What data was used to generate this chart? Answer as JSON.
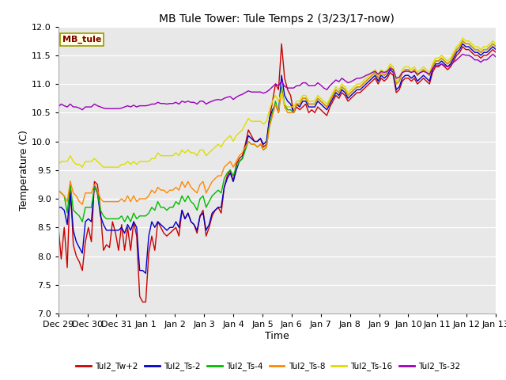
{
  "title": "MB Tule Tower: Tule Temps 2 (3/23/17-now)",
  "xlabel": "Time",
  "ylabel": "Temperature (C)",
  "ylim": [
    7.0,
    12.0
  ],
  "yticks": [
    7.0,
    7.5,
    8.0,
    8.5,
    9.0,
    9.5,
    10.0,
    10.5,
    11.0,
    11.5,
    12.0
  ],
  "background_color": "#e8e8e8",
  "station_label": "MB_tule",
  "tick_labels": [
    "Dec 29",
    "Dec 30",
    "Dec 31",
    "Jan 1",
    "Jan 2",
    "Jan 3",
    "Jan 4",
    "Jan 5",
    "Jan 6",
    "Jan 7",
    "Jan 8",
    "Jan 9",
    "Jan 10",
    "Jan 11",
    "Jan 12",
    "Jan 13"
  ],
  "tick_positions": [
    0,
    1,
    2,
    3,
    4,
    5,
    6,
    7,
    8,
    9,
    10,
    11,
    12,
    13,
    14,
    15
  ],
  "Tul2_Tw_plus2": [
    8.55,
    7.95,
    8.5,
    7.8,
    9.3,
    8.2,
    8.0,
    7.9,
    7.75,
    8.25,
    8.5,
    8.25,
    9.3,
    9.25,
    8.8,
    8.1,
    8.2,
    8.15,
    8.6,
    8.4,
    8.1,
    8.55,
    8.1,
    8.5,
    8.1,
    8.6,
    8.35,
    7.3,
    7.2,
    7.2,
    8.05,
    8.35,
    8.1,
    8.6,
    8.5,
    8.4,
    8.35,
    8.4,
    8.45,
    8.5,
    8.35,
    8.8,
    8.65,
    8.75,
    8.6,
    8.55,
    8.4,
    8.7,
    8.8,
    8.35,
    8.5,
    8.7,
    8.8,
    8.85,
    8.75,
    9.2,
    9.4,
    9.5,
    9.3,
    9.6,
    9.7,
    9.75,
    9.95,
    10.2,
    10.1,
    10.0,
    10.0,
    10.05,
    9.9,
    9.95,
    10.4,
    10.7,
    11.0,
    10.9,
    11.7,
    11.1,
    10.9,
    10.8,
    10.5,
    10.6,
    10.55,
    10.6,
    10.65,
    10.5,
    10.55,
    10.5,
    10.6,
    10.55,
    10.5,
    10.45,
    10.6,
    10.7,
    10.8,
    10.75,
    10.85,
    10.8,
    10.7,
    10.75,
    10.8,
    10.85,
    10.85,
    10.9,
    10.95,
    11.0,
    11.05,
    11.1,
    11.0,
    11.1,
    11.05,
    11.1,
    11.2,
    11.15,
    10.85,
    10.9,
    11.05,
    11.1,
    11.1,
    11.05,
    11.1,
    11.0,
    11.05,
    11.1,
    11.05,
    11.0,
    11.2,
    11.3,
    11.3,
    11.35,
    11.3,
    11.25,
    11.3,
    11.4,
    11.5,
    11.55,
    11.65,
    11.6,
    11.6,
    11.55,
    11.5,
    11.5,
    11.45,
    11.5,
    11.5,
    11.55,
    11.6,
    11.55
  ],
  "Tul2_Ts_minus2": [
    8.85,
    8.85,
    8.8,
    8.55,
    9.1,
    8.45,
    8.25,
    8.15,
    8.05,
    8.6,
    8.65,
    8.6,
    9.25,
    9.1,
    8.7,
    8.55,
    8.45,
    8.45,
    8.45,
    8.45,
    8.45,
    8.5,
    8.4,
    8.55,
    8.45,
    8.6,
    8.5,
    7.75,
    7.75,
    7.7,
    8.35,
    8.6,
    8.5,
    8.6,
    8.55,
    8.5,
    8.45,
    8.5,
    8.5,
    8.6,
    8.5,
    8.8,
    8.65,
    8.75,
    8.6,
    8.55,
    8.45,
    8.7,
    8.75,
    8.45,
    8.55,
    8.75,
    8.8,
    8.85,
    8.85,
    9.2,
    9.35,
    9.45,
    9.3,
    9.5,
    9.65,
    9.7,
    9.9,
    10.1,
    10.05,
    10.0,
    10.0,
    10.05,
    9.95,
    10.0,
    10.4,
    10.55,
    10.65,
    10.5,
    11.15,
    10.8,
    10.7,
    10.65,
    10.5,
    10.65,
    10.6,
    10.7,
    10.7,
    10.6,
    10.6,
    10.6,
    10.7,
    10.65,
    10.6,
    10.55,
    10.65,
    10.75,
    10.85,
    10.8,
    10.9,
    10.85,
    10.75,
    10.8,
    10.85,
    10.9,
    10.9,
    10.95,
    11.0,
    11.05,
    11.1,
    11.15,
    11.05,
    11.15,
    11.1,
    11.15,
    11.25,
    11.2,
    10.9,
    10.95,
    11.1,
    11.15,
    11.15,
    11.1,
    11.15,
    11.05,
    11.1,
    11.15,
    11.1,
    11.05,
    11.25,
    11.35,
    11.35,
    11.4,
    11.35,
    11.3,
    11.35,
    11.45,
    11.55,
    11.6,
    11.7,
    11.65,
    11.65,
    11.6,
    11.55,
    11.55,
    11.5,
    11.55,
    11.55,
    11.6,
    11.65,
    11.6
  ],
  "Tul2_Ts_minus4": [
    9.15,
    9.1,
    9.05,
    8.75,
    9.25,
    8.8,
    8.75,
    8.7,
    8.6,
    8.85,
    8.85,
    8.85,
    9.2,
    9.1,
    8.8,
    8.7,
    8.65,
    8.65,
    8.65,
    8.65,
    8.65,
    8.7,
    8.6,
    8.7,
    8.6,
    8.75,
    8.65,
    8.7,
    8.7,
    8.7,
    8.75,
    8.85,
    8.8,
    8.95,
    8.85,
    8.85,
    8.8,
    8.85,
    8.85,
    8.95,
    8.9,
    9.05,
    8.95,
    9.05,
    8.95,
    8.9,
    8.8,
    9.0,
    9.05,
    8.85,
    8.95,
    9.05,
    9.1,
    9.15,
    9.1,
    9.35,
    9.45,
    9.5,
    9.4,
    9.55,
    9.65,
    9.7,
    9.85,
    10.0,
    9.95,
    9.95,
    9.9,
    9.95,
    9.85,
    9.9,
    10.3,
    10.5,
    10.7,
    10.5,
    10.95,
    10.65,
    10.55,
    10.55,
    10.5,
    10.65,
    10.65,
    10.75,
    10.75,
    10.65,
    10.65,
    10.65,
    10.75,
    10.7,
    10.65,
    10.6,
    10.7,
    10.8,
    10.9,
    10.85,
    10.95,
    10.9,
    10.8,
    10.85,
    10.9,
    10.95,
    10.95,
    11.0,
    11.05,
    11.1,
    11.15,
    11.2,
    11.1,
    11.2,
    11.15,
    11.2,
    11.3,
    11.25,
    11.0,
    11.05,
    11.2,
    11.25,
    11.25,
    11.2,
    11.25,
    11.15,
    11.2,
    11.25,
    11.2,
    11.15,
    11.3,
    11.4,
    11.4,
    11.45,
    11.4,
    11.35,
    11.4,
    11.5,
    11.6,
    11.65,
    11.75,
    11.7,
    11.7,
    11.65,
    11.6,
    11.6,
    11.55,
    11.6,
    11.6,
    11.65,
    11.7,
    11.65
  ],
  "Tul2_Ts_minus8": [
    9.15,
    9.1,
    9.05,
    8.95,
    9.3,
    9.1,
    9.05,
    8.95,
    8.9,
    9.1,
    9.1,
    9.1,
    9.25,
    9.15,
    9.0,
    8.95,
    8.95,
    8.95,
    8.95,
    8.95,
    8.95,
    9.0,
    8.95,
    9.05,
    8.95,
    9.05,
    8.95,
    9.0,
    9.0,
    9.0,
    9.05,
    9.15,
    9.1,
    9.2,
    9.15,
    9.15,
    9.1,
    9.15,
    9.15,
    9.2,
    9.15,
    9.3,
    9.2,
    9.3,
    9.2,
    9.15,
    9.1,
    9.25,
    9.3,
    9.1,
    9.2,
    9.3,
    9.35,
    9.4,
    9.4,
    9.55,
    9.6,
    9.65,
    9.55,
    9.65,
    9.75,
    9.8,
    9.9,
    10.0,
    9.95,
    9.95,
    9.9,
    9.95,
    9.85,
    9.9,
    10.25,
    10.45,
    10.65,
    10.5,
    10.9,
    10.6,
    10.5,
    10.5,
    10.5,
    10.65,
    10.65,
    10.75,
    10.75,
    10.65,
    10.65,
    10.65,
    10.75,
    10.7,
    10.65,
    10.6,
    10.7,
    10.8,
    10.9,
    10.85,
    10.95,
    10.9,
    10.8,
    10.85,
    10.9,
    10.95,
    10.95,
    11.0,
    11.05,
    11.1,
    11.15,
    11.2,
    11.1,
    11.2,
    11.15,
    11.2,
    11.3,
    11.25,
    11.0,
    11.05,
    11.2,
    11.25,
    11.25,
    11.2,
    11.25,
    11.15,
    11.2,
    11.25,
    11.2,
    11.15,
    11.3,
    11.4,
    11.4,
    11.45,
    11.4,
    11.35,
    11.4,
    11.5,
    11.6,
    11.65,
    11.75,
    11.7,
    11.7,
    11.65,
    11.6,
    11.6,
    11.55,
    11.6,
    11.6,
    11.65,
    11.7,
    11.65
  ],
  "Tul2_Ts_minus16": [
    9.6,
    9.65,
    9.65,
    9.65,
    9.75,
    9.65,
    9.6,
    9.6,
    9.55,
    9.65,
    9.65,
    9.65,
    9.7,
    9.65,
    9.6,
    9.55,
    9.55,
    9.55,
    9.55,
    9.55,
    9.55,
    9.6,
    9.6,
    9.65,
    9.6,
    9.65,
    9.6,
    9.65,
    9.65,
    9.65,
    9.65,
    9.7,
    9.7,
    9.8,
    9.75,
    9.75,
    9.75,
    9.75,
    9.75,
    9.8,
    9.75,
    9.85,
    9.8,
    9.85,
    9.8,
    9.8,
    9.75,
    9.85,
    9.85,
    9.75,
    9.8,
    9.85,
    9.9,
    9.95,
    9.9,
    10.0,
    10.05,
    10.1,
    10.0,
    10.1,
    10.15,
    10.2,
    10.3,
    10.4,
    10.35,
    10.35,
    10.35,
    10.35,
    10.3,
    10.35,
    10.55,
    10.7,
    10.8,
    10.7,
    10.85,
    10.65,
    10.6,
    10.6,
    10.6,
    10.7,
    10.7,
    10.8,
    10.8,
    10.7,
    10.7,
    10.7,
    10.8,
    10.75,
    10.7,
    10.65,
    10.75,
    10.85,
    10.95,
    10.9,
    11.0,
    10.95,
    10.85,
    10.9,
    10.95,
    11.0,
    11.0,
    11.05,
    11.1,
    11.15,
    11.2,
    11.25,
    11.15,
    11.25,
    11.2,
    11.25,
    11.35,
    11.3,
    11.05,
    11.1,
    11.25,
    11.3,
    11.3,
    11.25,
    11.3,
    11.2,
    11.25,
    11.3,
    11.25,
    11.2,
    11.35,
    11.45,
    11.45,
    11.5,
    11.45,
    11.4,
    11.45,
    11.55,
    11.65,
    11.7,
    11.8,
    11.75,
    11.75,
    11.7,
    11.65,
    11.65,
    11.6,
    11.65,
    11.65,
    11.7,
    11.75,
    11.7
  ],
  "Tul2_Ts_minus32": [
    10.6,
    10.65,
    10.62,
    10.6,
    10.65,
    10.6,
    10.6,
    10.58,
    10.55,
    10.6,
    10.6,
    10.6,
    10.65,
    10.62,
    10.6,
    10.58,
    10.57,
    10.57,
    10.57,
    10.57,
    10.57,
    10.58,
    10.6,
    10.62,
    10.6,
    10.63,
    10.6,
    10.62,
    10.62,
    10.62,
    10.63,
    10.65,
    10.65,
    10.68,
    10.66,
    10.66,
    10.65,
    10.66,
    10.66,
    10.68,
    10.65,
    10.7,
    10.68,
    10.7,
    10.68,
    10.68,
    10.65,
    10.7,
    10.7,
    10.65,
    10.68,
    10.7,
    10.72,
    10.73,
    10.72,
    10.75,
    10.77,
    10.78,
    10.73,
    10.77,
    10.8,
    10.82,
    10.85,
    10.88,
    10.86,
    10.86,
    10.86,
    10.86,
    10.84,
    10.86,
    10.9,
    10.95,
    11.0,
    10.97,
    11.05,
    10.96,
    10.93,
    10.93,
    10.93,
    10.97,
    10.97,
    11.02,
    11.02,
    10.97,
    10.97,
    10.97,
    11.02,
    10.98,
    10.93,
    10.9,
    10.97,
    11.02,
    11.07,
    11.04,
    11.1,
    11.06,
    11.02,
    11.04,
    11.07,
    11.1,
    11.1,
    11.12,
    11.15,
    11.17,
    11.2,
    11.22,
    11.17,
    11.22,
    11.2,
    11.22,
    11.27,
    11.25,
    11.1,
    11.12,
    11.2,
    11.22,
    11.22,
    11.2,
    11.22,
    11.17,
    11.2,
    11.22,
    11.2,
    11.17,
    11.27,
    11.32,
    11.32,
    11.35,
    11.32,
    11.3,
    11.32,
    11.38,
    11.42,
    11.47,
    11.52,
    11.5,
    11.5,
    11.47,
    11.42,
    11.42,
    11.38,
    11.42,
    11.42,
    11.47,
    11.52,
    11.47
  ]
}
